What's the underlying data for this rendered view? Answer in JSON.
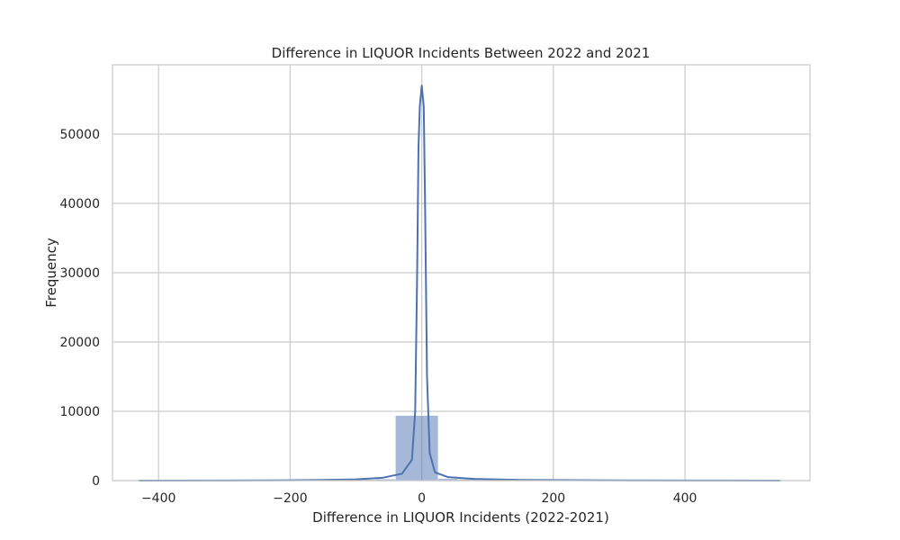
{
  "chart_data": {
    "type": "bar",
    "title": "Difference in LIQUOR Incidents Between 2022 and 2021",
    "xlabel": "Difference in LIQUOR Incidents (2022-2021)",
    "ylabel": "Frequency",
    "xlim": [
      -470,
      590
    ],
    "ylim": [
      0,
      60000
    ],
    "x_ticks": [
      -400,
      -200,
      0,
      200,
      400
    ],
    "x_tick_labels": [
      "−400",
      "−200",
      "0",
      "200",
      "400"
    ],
    "y_ticks": [
      0,
      10000,
      20000,
      30000,
      40000,
      50000
    ],
    "y_tick_labels": [
      "0",
      "10000",
      "20000",
      "30000",
      "40000",
      "50000"
    ],
    "grid": true,
    "bar_color": "#4c72b0",
    "bar_opacity": 0.5,
    "line_color": "#4c72b0",
    "histogram": [
      {
        "x0": -430,
        "x1": -400,
        "count": 8
      },
      {
        "x0": -370,
        "x1": -340,
        "count": 5
      },
      {
        "x0": -310,
        "x1": -280,
        "count": 15
      },
      {
        "x0": -280,
        "x1": -250,
        "count": 20
      },
      {
        "x0": -220,
        "x1": -190,
        "count": 25
      },
      {
        "x0": -190,
        "x1": -160,
        "count": 30
      },
      {
        "x0": -160,
        "x1": -130,
        "count": 55
      },
      {
        "x0": -130,
        "x1": -100,
        "count": 110
      },
      {
        "x0": -100,
        "x1": -70,
        "count": 160
      },
      {
        "x0": -70,
        "x1": -40,
        "count": 220
      },
      {
        "x0": -40,
        "x1": 25,
        "count": 9400
      },
      {
        "x0": 25,
        "x1": 55,
        "count": 300
      },
      {
        "x0": 55,
        "x1": 85,
        "count": 200
      },
      {
        "x0": 85,
        "x1": 115,
        "count": 140
      },
      {
        "x0": 115,
        "x1": 145,
        "count": 90
      },
      {
        "x0": 145,
        "x1": 175,
        "count": 60
      },
      {
        "x0": 205,
        "x1": 235,
        "count": 30
      },
      {
        "x0": 265,
        "x1": 295,
        "count": 20
      },
      {
        "x0": 325,
        "x1": 355,
        "count": 12
      },
      {
        "x0": 385,
        "x1": 415,
        "count": 8
      },
      {
        "x0": 445,
        "x1": 475,
        "count": 6
      },
      {
        "x0": 515,
        "x1": 545,
        "count": 5
      }
    ],
    "kde": {
      "x": [
        -430,
        -300,
        -200,
        -150,
        -100,
        -60,
        -30,
        -15,
        -10,
        -7,
        -5,
        -3,
        0,
        3,
        5,
        8,
        12,
        20,
        40,
        80,
        150,
        300,
        450,
        545
      ],
      "y": [
        0,
        20,
        50,
        90,
        180,
        400,
        1000,
        3000,
        10000,
        30000,
        48000,
        54000,
        57000,
        54000,
        40000,
        15000,
        4000,
        1200,
        500,
        250,
        100,
        40,
        15,
        0
      ]
    }
  }
}
